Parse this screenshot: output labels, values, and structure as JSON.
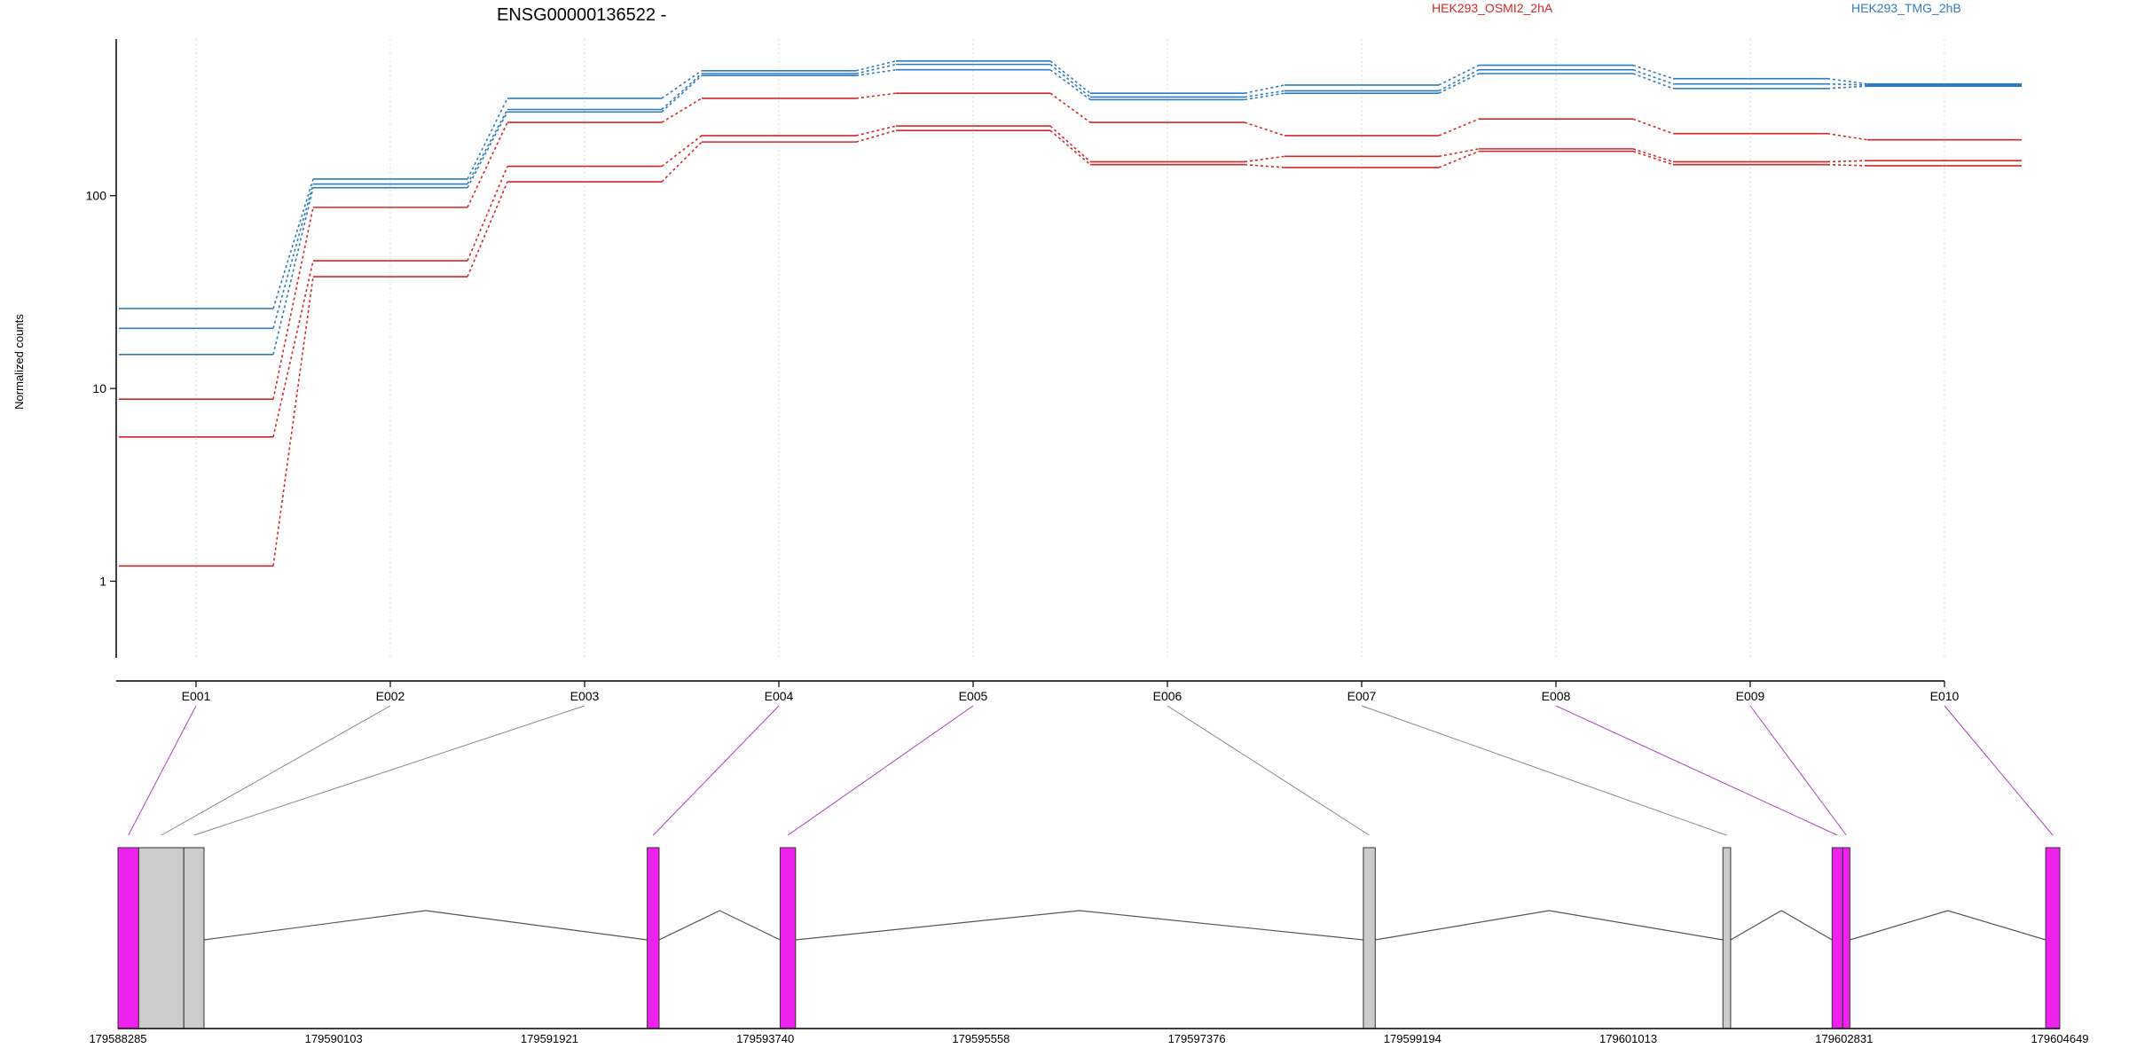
{
  "chart_data": {
    "type": "line",
    "title": "ENSG00000136522 -",
    "ylabel": "Normalized counts",
    "xlabel": "",
    "y_scale": "log",
    "ylim": [
      0.4,
      650
    ],
    "y_ticks": [
      1,
      10,
      100
    ],
    "y_tick_labels": [
      "1",
      "10",
      "100"
    ],
    "grid": "vertical dotted at exon positions",
    "legend_position": "top-right",
    "categories": [
      "E001",
      "E002",
      "E003",
      "E004",
      "E005",
      "E006",
      "E007",
      "E008",
      "E009",
      "E010"
    ],
    "series": [
      {
        "name": "HEK293_OSMI2_2hA",
        "color": "#D62728",
        "group": "HEK293_OSMI2_2hA",
        "values": [
          8.8,
          87,
          240,
          320,
          340,
          240,
          205,
          250,
          210,
          195
        ]
      },
      {
        "name": "",
        "color": "#D62728",
        "group": "HEK293_OSMI2_2hA",
        "values": [
          5.6,
          46,
          142,
          205,
          230,
          150,
          160,
          175,
          150,
          152
        ]
      },
      {
        "name": "",
        "color": "#D62728",
        "group": "HEK293_OSMI2_2hA",
        "values": [
          1.2,
          38,
          118,
          190,
          218,
          145,
          140,
          170,
          145,
          143
        ]
      },
      {
        "name": "HEK293_TMG_2hB",
        "color": "#2F7BBF",
        "group": "HEK293_TMG_2hB",
        "values": [
          26,
          122,
          320,
          445,
          500,
          340,
          375,
          475,
          405,
          380
        ]
      },
      {
        "name": "",
        "color": "#2F7BBF",
        "group": "HEK293_TMG_2hB",
        "values": [
          20.5,
          115,
          280,
          430,
          480,
          325,
          350,
          450,
          380,
          375
        ]
      },
      {
        "name": "",
        "color": "#2F7BBF",
        "group": "HEK293_TMG_2hB",
        "values": [
          15,
          110,
          272,
          420,
          450,
          315,
          340,
          430,
          360,
          370
        ]
      }
    ],
    "legend": [
      {
        "label": "HEK293_OSMI2_2hA",
        "color": "#D62728"
      },
      {
        "label": "HEK293_TMG_2hB",
        "color": "#2F7BBF"
      }
    ],
    "gene_model": {
      "genomic_axis_ticks": [
        "179588285",
        "179590103",
        "179591921",
        "179593740",
        "179595558",
        "179597376",
        "179599194",
        "179601013",
        "179602831",
        "179604649"
      ],
      "genomic_range": [
        179588285,
        179604649
      ],
      "exons": [
        {
          "id": "E001",
          "start": 179588285,
          "end": 179588460,
          "color": "#EE22EE"
        },
        {
          "id": "E002",
          "start": 179588460,
          "end": 179588840,
          "color": "#CCCCCC"
        },
        {
          "id": "E003",
          "start": 179588840,
          "end": 179589010,
          "color": "#CCCCCC"
        },
        {
          "id": "E004",
          "start": 179592745,
          "end": 179592845,
          "color": "#EE22EE"
        },
        {
          "id": "E005",
          "start": 179593865,
          "end": 179593995,
          "color": "#EE22EE"
        },
        {
          "id": "E006",
          "start": 179598780,
          "end": 179598880,
          "color": "#CCCCCC"
        },
        {
          "id": "E007",
          "start": 179601810,
          "end": 179601875,
          "color": "#CCCCCC"
        },
        {
          "id": "E008",
          "start": 179602730,
          "end": 179602820,
          "color": "#EE22EE"
        },
        {
          "id": "E009",
          "start": 179602820,
          "end": 179602880,
          "color": "#EE22EE"
        },
        {
          "id": "E010",
          "start": 179604530,
          "end": 179604649,
          "color": "#EE22EE"
        }
      ],
      "introns": [
        [
          179589010,
          179592745
        ],
        [
          179592845,
          179593865
        ],
        [
          179593995,
          179598780
        ],
        [
          179598880,
          179601810
        ],
        [
          179601875,
          179602730
        ],
        [
          179602880,
          179604530
        ]
      ]
    }
  }
}
